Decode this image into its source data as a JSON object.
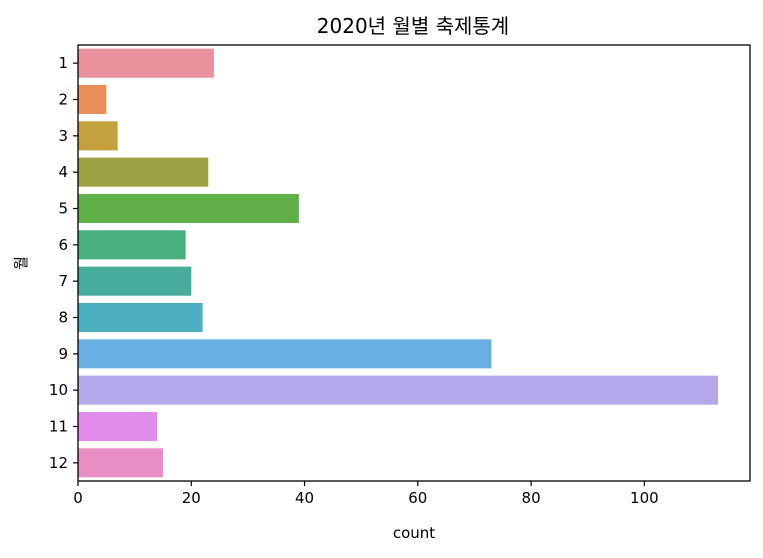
{
  "chart_data": {
    "type": "bar",
    "orientation": "horizontal",
    "title": "2020년 월별 축제통계",
    "xlabel": "count",
    "ylabel": "월",
    "categories": [
      "1",
      "2",
      "3",
      "4",
      "5",
      "6",
      "7",
      "8",
      "9",
      "10",
      "11",
      "12"
    ],
    "values": [
      24,
      5,
      7,
      23,
      39,
      19,
      20,
      22,
      73,
      113,
      14,
      15
    ],
    "colors": [
      "#e9929e",
      "#e88f57",
      "#c4a03f",
      "#9da043",
      "#5fb048",
      "#47b07e",
      "#47ac9b",
      "#4bafc0",
      "#6aafe4",
      "#b4a7ea",
      "#e18cea",
      "#e88ec5"
    ],
    "xlim": [
      0,
      118.65
    ],
    "xticks": [
      0,
      20,
      40,
      60,
      80,
      100
    ],
    "grid": false
  }
}
